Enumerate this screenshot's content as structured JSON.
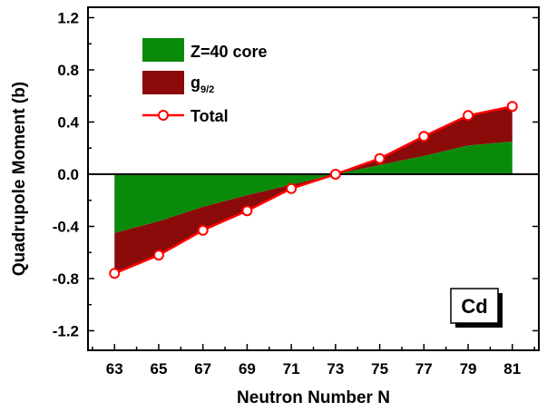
{
  "chart_data": {
    "type": "area",
    "xlabel": "Neutron Number N",
    "ylabel": "Quadrupole Moment (b)",
    "xlim": [
      61.8,
      82.2
    ],
    "ylim": [
      -1.35,
      1.28
    ],
    "x_ticks": [
      63,
      65,
      67,
      69,
      71,
      73,
      75,
      77,
      79,
      81
    ],
    "x_tick_labels": [
      "63",
      "65",
      "67",
      "69",
      "71",
      "73",
      "75",
      "77",
      "79",
      "81"
    ],
    "y_ticks": [
      -1.2,
      -0.8,
      -0.4,
      0.0,
      0.4,
      0.8,
      1.2
    ],
    "y_tick_labels": [
      "-1.2",
      "-0.8",
      "-0.4",
      "0.0",
      "0.4",
      "0.8",
      "1.2"
    ],
    "x": [
      63,
      65,
      67,
      69,
      71,
      73,
      75,
      77,
      79,
      81
    ],
    "series": [
      {
        "name": "Z=40 core",
        "color": "#0a8a0a",
        "values": [
          -0.45,
          -0.36,
          -0.25,
          -0.16,
          -0.08,
          0.0,
          0.07,
          0.14,
          0.22,
          0.25
        ]
      },
      {
        "name": "g",
        "name_subscript": "9/2",
        "color": "#8b0a0a",
        "values": [
          -0.31,
          -0.26,
          -0.18,
          -0.12,
          -0.03,
          0.0,
          0.05,
          0.15,
          0.23,
          0.27
        ]
      },
      {
        "name": "Total",
        "color": "#ff0000",
        "values": [
          -0.76,
          -0.62,
          -0.43,
          -0.28,
          -0.11,
          0.0,
          0.12,
          0.29,
          0.45,
          0.52
        ]
      }
    ],
    "annotation": "Cd",
    "legend_position": "top-left",
    "grid": false
  }
}
